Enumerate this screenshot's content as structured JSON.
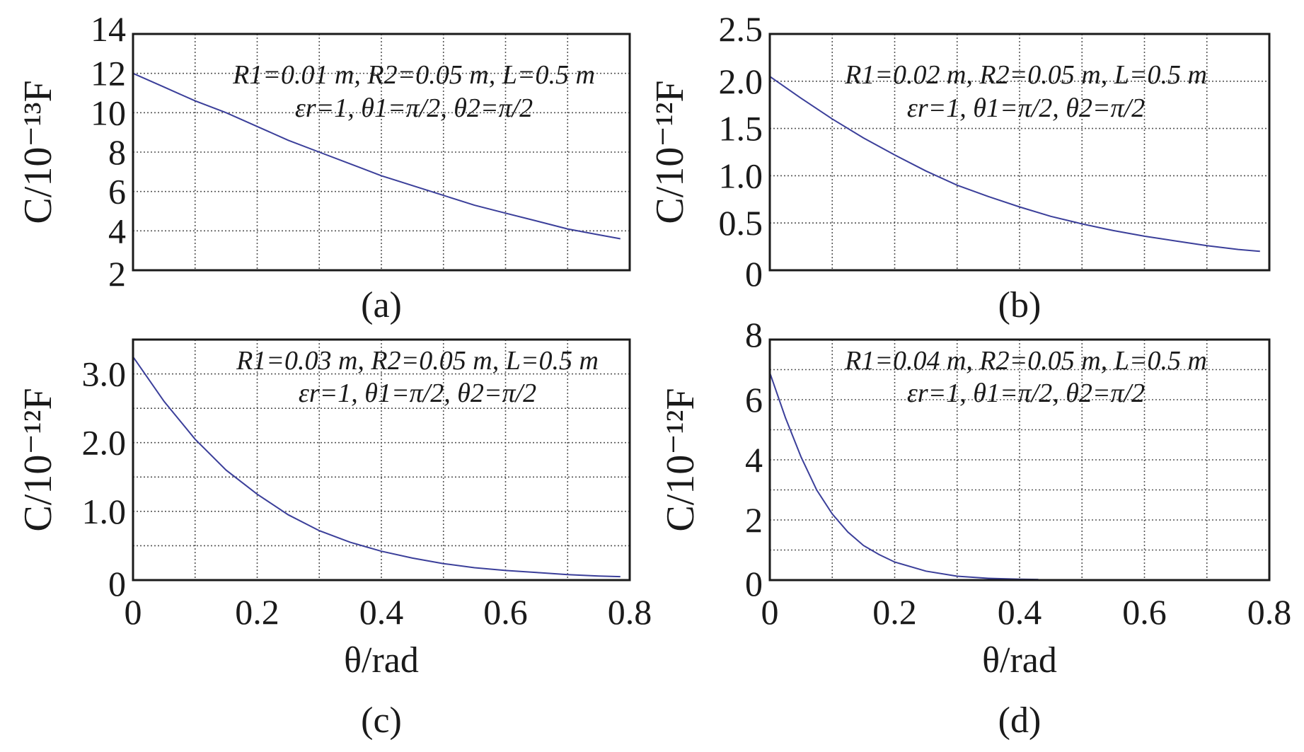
{
  "colors": {
    "curve": "#3b3f9a",
    "frame": "#1a1a1a",
    "grid": "#555555"
  },
  "chart_data": [
    {
      "type": "line",
      "panel_label": "(a)",
      "annotation": {
        "line1": "R1=0.01 m, R2=0.05 m, L=0.5 m",
        "line2": "εr=1, θ1=π/2, θ2=π/2"
      },
      "ylabel": "C/10⁻¹³F",
      "xlabel": "",
      "xlim": [
        0,
        0.8
      ],
      "ylim": [
        2,
        14
      ],
      "xticks": [],
      "yticks": [
        "2",
        "4",
        "6",
        "8",
        "10",
        "12",
        "14"
      ],
      "grid": true,
      "series": [
        {
          "name": "C",
          "x": [
            0,
            0.05,
            0.1,
            0.15,
            0.2,
            0.25,
            0.3,
            0.35,
            0.4,
            0.45,
            0.5,
            0.55,
            0.6,
            0.65,
            0.7,
            0.75,
            0.785
          ],
          "y": [
            12.0,
            11.3,
            10.6,
            10.0,
            9.3,
            8.6,
            8.0,
            7.4,
            6.8,
            6.3,
            5.8,
            5.3,
            4.9,
            4.5,
            4.1,
            3.8,
            3.6
          ]
        }
      ]
    },
    {
      "type": "line",
      "panel_label": "(b)",
      "annotation": {
        "line1": "R1=0.02 m, R2=0.05 m, L=0.5 m",
        "line2": "εr=1, θ1=π/2, θ2=π/2"
      },
      "ylabel": "C/10⁻¹²F",
      "xlabel": "",
      "xlim": [
        0,
        0.8
      ],
      "ylim": [
        0,
        2.5
      ],
      "xticks": [],
      "yticks": [
        "0",
        "0.5",
        "1.0",
        "1.5",
        "2.0",
        "2.5"
      ],
      "grid": true,
      "series": [
        {
          "name": "C",
          "x": [
            0,
            0.05,
            0.1,
            0.15,
            0.2,
            0.25,
            0.3,
            0.35,
            0.4,
            0.45,
            0.5,
            0.55,
            0.6,
            0.65,
            0.7,
            0.75,
            0.785
          ],
          "y": [
            2.05,
            1.82,
            1.6,
            1.4,
            1.22,
            1.05,
            0.9,
            0.78,
            0.67,
            0.57,
            0.49,
            0.42,
            0.36,
            0.31,
            0.26,
            0.22,
            0.2
          ]
        }
      ]
    },
    {
      "type": "line",
      "panel_label": "(c)",
      "annotation": {
        "line1": "R1=0.03 m, R2=0.05 m, L=0.5 m",
        "line2": "εr=1, θ1=π/2, θ2=π/2"
      },
      "ylabel": "C/10⁻¹²F",
      "xlabel": "θ/rad",
      "xlim": [
        0,
        0.8
      ],
      "ylim": [
        0,
        3.5
      ],
      "xticks": [
        "0",
        "0.2",
        "0.4",
        "0.6",
        "0.8"
      ],
      "yticks": [
        "0",
        "1.0",
        "2.0",
        "3.0"
      ],
      "grid": true,
      "series": [
        {
          "name": "C",
          "x": [
            0,
            0.05,
            0.1,
            0.15,
            0.2,
            0.25,
            0.3,
            0.35,
            0.4,
            0.45,
            0.5,
            0.55,
            0.6,
            0.65,
            0.7,
            0.75,
            0.785
          ],
          "y": [
            3.25,
            2.6,
            2.05,
            1.6,
            1.25,
            0.95,
            0.72,
            0.55,
            0.42,
            0.32,
            0.24,
            0.18,
            0.14,
            0.11,
            0.08,
            0.06,
            0.05
          ]
        }
      ]
    },
    {
      "type": "line",
      "panel_label": "(d)",
      "annotation": {
        "line1": "R1=0.04 m, R2=0.05 m, L=0.5 m",
        "line2": "εr=1, θ1=π/2, θ2=π/2"
      },
      "ylabel": "C/10⁻¹²F",
      "xlabel": "θ/rad",
      "xlim": [
        0,
        0.8
      ],
      "ylim": [
        0,
        8
      ],
      "xticks": [
        "0",
        "0.2",
        "0.4",
        "0.6",
        "0.8"
      ],
      "yticks": [
        "0",
        "2",
        "4",
        "6",
        "8"
      ],
      "grid": true,
      "series": [
        {
          "name": "C",
          "x": [
            0,
            0.025,
            0.05,
            0.075,
            0.1,
            0.125,
            0.15,
            0.175,
            0.2,
            0.25,
            0.3,
            0.35,
            0.4,
            0.43
          ],
          "y": [
            6.9,
            5.4,
            4.1,
            3.0,
            2.2,
            1.6,
            1.15,
            0.85,
            0.6,
            0.3,
            0.13,
            0.06,
            0.03,
            0.02
          ]
        }
      ]
    }
  ]
}
